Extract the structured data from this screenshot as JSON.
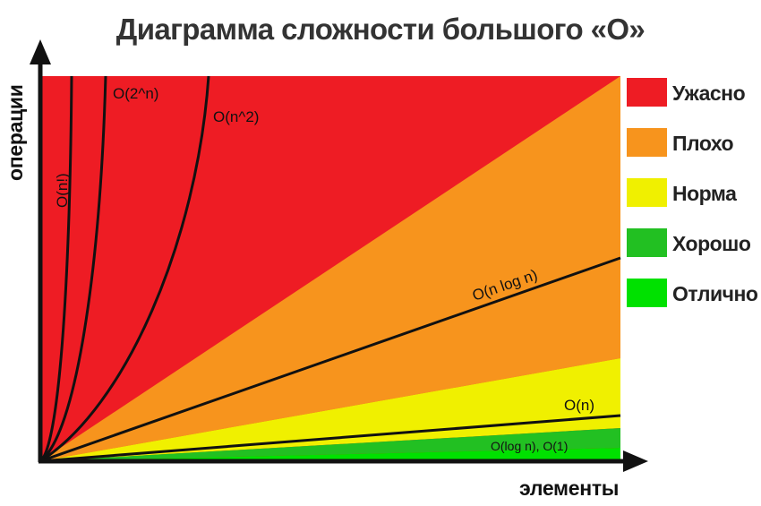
{
  "title": "Диаграмма сложности большого «O»",
  "axes": {
    "y_label": "операции",
    "x_label": "элементы"
  },
  "curves": [
    {
      "id": "factorial",
      "label": "O(n!)"
    },
    {
      "id": "exponential",
      "label": "O(2^n)"
    },
    {
      "id": "quadratic",
      "label": "O(n^2)"
    },
    {
      "id": "nlogn",
      "label": "O(n log n)"
    },
    {
      "id": "linear",
      "label": "O(n)"
    },
    {
      "id": "log-const",
      "label": "O(log n), O(1)"
    }
  ],
  "legend": [
    {
      "label": "Ужасно",
      "color": "#ee1c24"
    },
    {
      "label": "Плохо",
      "color": "#f7941d"
    },
    {
      "label": "Норма",
      "color": "#f0f000"
    },
    {
      "label": "Хорошо",
      "color": "#22c022"
    },
    {
      "label": "Отлично",
      "color": "#00e100"
    }
  ]
}
